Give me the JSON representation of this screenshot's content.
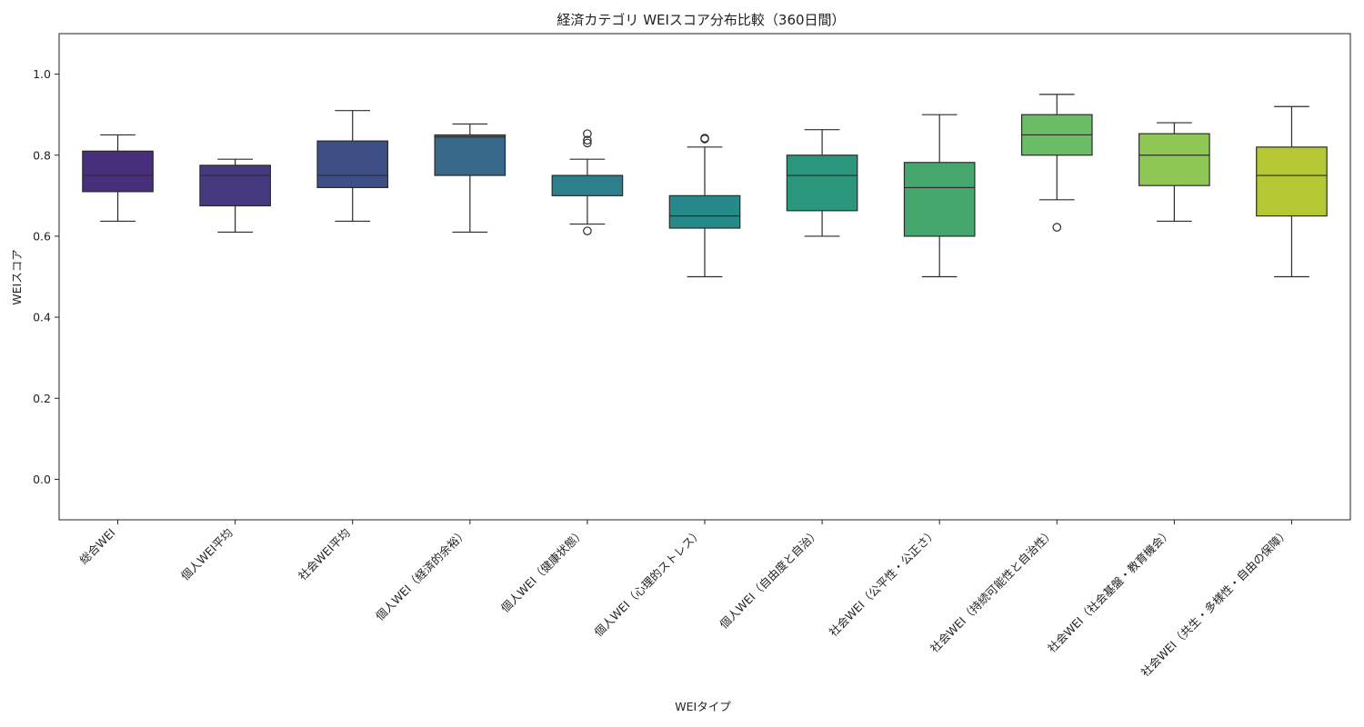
{
  "chart_data": {
    "type": "box",
    "title": "経済カテゴリ WEIスコア分布比較（360日間）",
    "xlabel": "WEIタイプ",
    "ylabel": "WEIスコア",
    "ylim": [
      -0.1,
      1.1
    ],
    "yticks": [
      "0.0",
      "0.2",
      "0.4",
      "0.6",
      "0.8",
      "1.0"
    ],
    "grid": false,
    "categories": [
      "総合WEI",
      "個人WEI平均",
      "社会WEI平均",
      "個人WEI（経済的余裕）",
      "個人WEI（健康状態）",
      "個人WEI（心理的ストレス）",
      "個人WEI（自由度と自治）",
      "社会WEI（公平性・公正さ）",
      "社会WEI（持続可能性と自治性）",
      "社会WEI（社会基盤・教育機会）",
      "社会WEI（共生・多様性・自由の保障）"
    ],
    "boxes": [
      {
        "whisker_low": 0.637,
        "q1": 0.71,
        "median": 0.75,
        "q3": 0.81,
        "whisker_high": 0.85,
        "outliers": [],
        "color": "#472f7d"
      },
      {
        "whisker_low": 0.61,
        "q1": 0.675,
        "median": 0.75,
        "q3": 0.775,
        "whisker_high": 0.79,
        "outliers": [],
        "color": "#46397f"
      },
      {
        "whisker_low": 0.637,
        "q1": 0.72,
        "median": 0.75,
        "q3": 0.835,
        "whisker_high": 0.91,
        "outliers": [],
        "color": "#3e4f86"
      },
      {
        "whisker_low": 0.61,
        "q1": 0.75,
        "median": 0.845,
        "q3": 0.85,
        "whisker_high": 0.877,
        "outliers": [],
        "color": "#36698a"
      },
      {
        "whisker_low": 0.63,
        "q1": 0.7,
        "median": 0.75,
        "q3": 0.75,
        "whisker_high": 0.79,
        "outliers": [
          0.613,
          0.83,
          0.837,
          0.853
        ],
        "color": "#2d7f8c"
      },
      {
        "whisker_low": 0.5,
        "q1": 0.62,
        "median": 0.65,
        "q3": 0.7,
        "whisker_high": 0.82,
        "outliers": [
          0.84,
          0.842
        ],
        "color": "#258a89"
      },
      {
        "whisker_low": 0.6,
        "q1": 0.663,
        "median": 0.75,
        "q3": 0.8,
        "whisker_high": 0.863,
        "outliers": [],
        "color": "#2a977c"
      },
      {
        "whisker_low": 0.5,
        "q1": 0.6,
        "median": 0.72,
        "q3": 0.782,
        "whisker_high": 0.9,
        "outliers": [],
        "color": "#45a66e"
      },
      {
        "whisker_low": 0.69,
        "q1": 0.8,
        "median": 0.85,
        "q3": 0.9,
        "whisker_high": 0.95,
        "outliers": [
          0.622
        ],
        "color": "#6abd64"
      },
      {
        "whisker_low": 0.637,
        "q1": 0.725,
        "median": 0.8,
        "q3": 0.853,
        "whisker_high": 0.88,
        "outliers": [],
        "color": "#8fc754"
      },
      {
        "whisker_low": 0.5,
        "q1": 0.65,
        "median": 0.75,
        "q3": 0.82,
        "whisker_high": 0.92,
        "outliers": [],
        "color": "#b5c833"
      }
    ]
  }
}
